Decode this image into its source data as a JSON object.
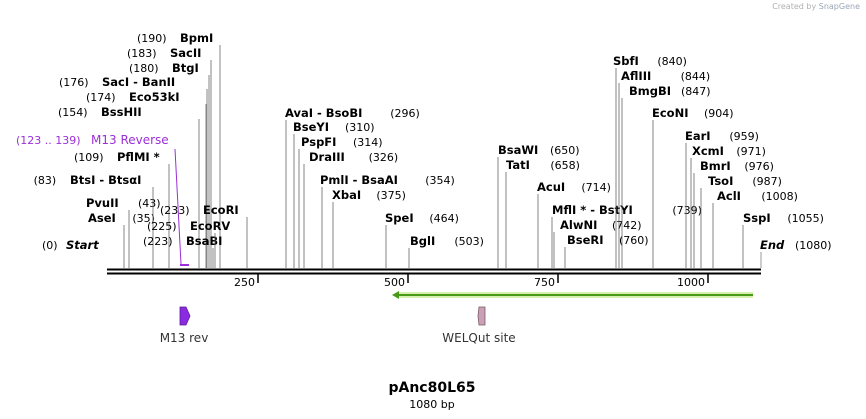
{
  "credit": {
    "prefix": "Created by",
    "brand": "SnapGene"
  },
  "map": {
    "name": "pAnc80L65",
    "length_label": "1080 bp",
    "ticks": [
      "250",
      "500",
      "750",
      "1000"
    ],
    "ends": {
      "start": {
        "label": "Start",
        "pos": "(0)"
      },
      "end": {
        "label": "End",
        "pos": "(1080)"
      }
    },
    "primer": {
      "name": "M13 Reverse",
      "range": "(123 .. 139)"
    },
    "features": [
      {
        "name": "M13 rev",
        "color": "#8a2be2"
      },
      {
        "name": "WELQut site",
        "color": "#c9a0b4"
      }
    ],
    "orf_color": "#4a9a1a"
  },
  "sites": [
    {
      "name": "AseI",
      "pos": "(35)"
    },
    {
      "name": "PvuII",
      "pos": "(43)"
    },
    {
      "name": "BtsI - BtsαI",
      "pos": "(83)"
    },
    {
      "name": "PflMI *",
      "pos": "(109)"
    },
    {
      "name": "BssHII",
      "pos": "(154)"
    },
    {
      "name": "Eco53kI",
      "pos": "(174)"
    },
    {
      "name": "SacI - BanII",
      "pos": "(176)"
    },
    {
      "name": "BtgI",
      "pos": "(180)"
    },
    {
      "name": "SacII",
      "pos": "(183)"
    },
    {
      "name": "BpmI",
      "pos": "(190)"
    },
    {
      "name": "BsaBI",
      "pos": "(223)"
    },
    {
      "name": "EcoRV",
      "pos": "(225)"
    },
    {
      "name": "EcoRI",
      "pos": "(233)"
    },
    {
      "name": "AvaI - BsoBI",
      "pos": "(296)"
    },
    {
      "name": "BseYI",
      "pos": "(310)"
    },
    {
      "name": "PspFI",
      "pos": "(314)"
    },
    {
      "name": "DraIII",
      "pos": "(326)"
    },
    {
      "name": "PmlI - BsaAI",
      "pos": "(354)"
    },
    {
      "name": "XbaI",
      "pos": "(375)"
    },
    {
      "name": "SpeI",
      "pos": "(464)"
    },
    {
      "name": "BglI",
      "pos": "(503)"
    },
    {
      "name": "BsaWI",
      "pos": "(650)"
    },
    {
      "name": "TatI",
      "pos": "(658)"
    },
    {
      "name": "AcuI",
      "pos": "(714)"
    },
    {
      "name": "MflI * - BstYI",
      "pos": "(739)"
    },
    {
      "name": "AlwNI",
      "pos": "(742)"
    },
    {
      "name": "BseRI",
      "pos": "(760)"
    },
    {
      "name": "SbfI",
      "pos": "(840)"
    },
    {
      "name": "AflIII",
      "pos": "(844)"
    },
    {
      "name": "BmgBI",
      "pos": "(847)"
    },
    {
      "name": "EcoNI",
      "pos": "(904)"
    },
    {
      "name": "EarI",
      "pos": "(959)"
    },
    {
      "name": "XcmI",
      "pos": "(971)"
    },
    {
      "name": "BmrI",
      "pos": "(976)"
    },
    {
      "name": "TsoI",
      "pos": "(987)"
    },
    {
      "name": "AclI",
      "pos": "(1008)"
    },
    {
      "name": "SspI",
      "pos": "(1055)"
    }
  ]
}
